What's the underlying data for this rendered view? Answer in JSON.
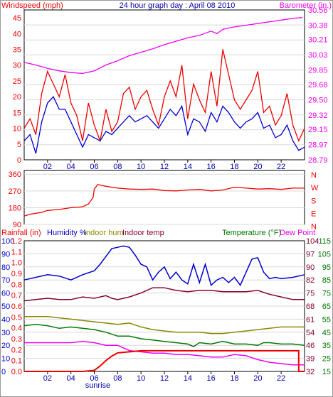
{
  "chart_data": [
    {
      "id": "wind",
      "type": "line",
      "header": {
        "left": "Windspeed (mph)",
        "center": "24 hour graph day : April 08 2010",
        "right": "Barometer (in.)"
      },
      "x_ticks": [
        "02",
        "04",
        "06",
        "08",
        "10",
        "12",
        "14",
        "16",
        "18",
        "20",
        "22"
      ],
      "x_extra_label": "sunrise",
      "y_left_ticks": [
        "0",
        "5",
        "10",
        "15",
        "20",
        "25",
        "30",
        "35",
        "40",
        "45"
      ],
      "y_left_range": [
        0,
        47.5
      ],
      "y_right_ticks": [
        "28.79",
        "28.97",
        "29.15",
        "29.32",
        "29.50",
        "29.68",
        "29.85",
        "30.03",
        "30.21",
        "30.38",
        "30.56"
      ],
      "y_right_range": [
        28.79,
        30.56
      ],
      "series": [
        {
          "key": "gust",
          "color": "#ee0000",
          "x": [
            0,
            0.5,
            1,
            1.5,
            2,
            2.5,
            3,
            3.5,
            4,
            4.5,
            5,
            5.5,
            6,
            6.5,
            7,
            7.5,
            8,
            8.5,
            9,
            9.5,
            10,
            10.5,
            11,
            11.5,
            12,
            12.5,
            13,
            13.5,
            14,
            14.5,
            15,
            15.5,
            16,
            16.5,
            17,
            17.5,
            18,
            18.5,
            19,
            19.5,
            20,
            20.5,
            21,
            21.5,
            22,
            22.5,
            23,
            23.5,
            24
          ],
          "values": [
            10,
            13,
            8,
            21,
            28,
            24,
            20,
            27,
            18,
            14,
            6,
            18,
            11,
            6,
            16,
            9,
            12,
            21,
            23,
            16,
            20,
            22,
            16,
            11,
            20,
            25,
            20,
            30,
            13,
            24,
            19,
            15,
            28,
            17,
            35,
            27,
            19,
            16,
            19,
            22,
            28,
            15,
            17,
            11,
            14,
            21,
            11,
            6,
            10
          ]
        },
        {
          "key": "avg",
          "color": "#0000cc",
          "x": [
            0,
            0.5,
            1,
            1.5,
            2,
            2.5,
            3,
            3.5,
            4,
            4.5,
            5,
            5.5,
            6,
            6.5,
            7,
            7.5,
            8,
            8.5,
            9,
            9.5,
            10,
            10.5,
            11,
            11.5,
            12,
            12.5,
            13,
            13.5,
            14,
            14.5,
            15,
            15.5,
            16,
            16.5,
            17,
            17.5,
            18,
            18.5,
            19,
            19.5,
            20,
            20.5,
            21,
            21.5,
            22,
            22.5,
            23,
            23.5,
            24
          ],
          "values": [
            6,
            8,
            2,
            12,
            18,
            20,
            16,
            16,
            12,
            8,
            4,
            8,
            7,
            6,
            9,
            8,
            10,
            12,
            14,
            12,
            13,
            14,
            12,
            10,
            13,
            16,
            14,
            17,
            8,
            13,
            12,
            9,
            15,
            12,
            17,
            15,
            12,
            10,
            12,
            13,
            15,
            10,
            11,
            7,
            8,
            11,
            6,
            3,
            4
          ]
        },
        {
          "key": "barometer",
          "color": "#ee00ee",
          "axis": "right",
          "x": [
            0,
            1,
            2,
            3,
            4,
            5,
            6,
            7,
            8,
            9,
            10,
            11,
            12,
            13,
            14,
            15,
            16,
            16.5,
            17,
            18,
            19,
            20,
            21,
            22,
            23,
            23.8
          ],
          "values": [
            29.94,
            29.91,
            29.87,
            29.84,
            29.82,
            29.81,
            29.84,
            29.91,
            29.96,
            30.02,
            30.06,
            30.1,
            30.15,
            30.19,
            30.23,
            30.26,
            30.31,
            30.28,
            30.33,
            30.36,
            30.38,
            30.4,
            30.42,
            30.44,
            30.46,
            30.47
          ]
        }
      ]
    },
    {
      "id": "direction",
      "type": "line",
      "y_left_ticks": [
        "360",
        "270",
        "180",
        "90"
      ],
      "y_left_range": [
        90,
        380
      ],
      "y_right_labels": [
        "N",
        "W",
        "S",
        "E",
        "N"
      ],
      "series": [
        {
          "key": "direction",
          "color": "#ee0000",
          "x": [
            0,
            0.5,
            1,
            1.5,
            2,
            2.5,
            3,
            3.5,
            4,
            4.5,
            5,
            5.5,
            5.9,
            6,
            6.3,
            6.6,
            7,
            8,
            9,
            10,
            11,
            12,
            13,
            14,
            15,
            16,
            17,
            18,
            19,
            20,
            21,
            22,
            23,
            24
          ],
          "values": [
            135,
            145,
            150,
            155,
            165,
            168,
            170,
            175,
            180,
            182,
            185,
            200,
            235,
            280,
            305,
            300,
            295,
            285,
            280,
            278,
            280,
            272,
            270,
            275,
            278,
            270,
            275,
            290,
            285,
            280,
            282,
            278,
            285,
            285
          ]
        }
      ]
    },
    {
      "id": "climate",
      "type": "line",
      "header": {
        "rain": "Rainfall (in)",
        "humidity": "Humidity %",
        "indoor_hum": "Indoor hum",
        "indoor_temp": "Indoor temp",
        "temperature": "Temperature (°F)",
        "dew_point": "Dew Point"
      },
      "colors": {
        "rain": "#ee0000",
        "humidity": "#0000cc",
        "indoor_hum": "#888800",
        "indoor_temp": "#880033",
        "temperature": "#007700",
        "dew_point": "#ee00ee"
      },
      "x_ticks": [
        "02",
        "04",
        "06",
        "08",
        "10",
        "12",
        "14",
        "16",
        "18",
        "20",
        "22"
      ],
      "x_extra_label": "sunrise",
      "y_humidity_ticks": [
        "0",
        "10",
        "20",
        "30",
        "40",
        "50",
        "60",
        "70",
        "80",
        "90",
        "100"
      ],
      "y_rain_ticks": [
        "0.0",
        "0.1",
        "0.2",
        "0.3",
        "0.4",
        "0.5",
        "0.6",
        "0.7",
        "0.8",
        "0.9",
        "1.0",
        "1.1",
        "1.2"
      ],
      "y_right_outer_ticks": [
        "115",
        "105",
        "95",
        "85",
        "75",
        "65",
        "55",
        "45",
        "35",
        "25",
        "15"
      ],
      "y_right_inner_ticks": [
        "104",
        "97",
        "90",
        "82",
        "75",
        "68",
        "61",
        "54",
        "46",
        "39",
        "32"
      ],
      "rain_range": [
        0,
        1.2
      ],
      "humidity_range": [
        0,
        100
      ],
      "temp_range": [
        15,
        115
      ],
      "series": [
        {
          "key": "humidity",
          "color": "#0000cc",
          "axis": "humidity",
          "x": [
            0,
            1,
            2,
            3,
            4,
            5,
            6,
            6.5,
            7,
            7.5,
            8,
            8.5,
            9,
            9.5,
            10,
            10.5,
            11,
            11.5,
            12,
            12.5,
            13,
            13.5,
            14,
            14.5,
            15,
            15.5,
            16,
            16.5,
            17,
            17.5,
            18,
            18.5,
            19,
            19.5,
            20,
            20.5,
            21,
            21.5,
            22,
            23,
            24
          ],
          "values": [
            70,
            72,
            74,
            73,
            70,
            74,
            77,
            82,
            88,
            94,
            95,
            96,
            95,
            89,
            82,
            80,
            70,
            76,
            80,
            71,
            76,
            70,
            67,
            82,
            68,
            82,
            66,
            70,
            72,
            68,
            72,
            66,
            76,
            86,
            87,
            76,
            71,
            72,
            71,
            72,
            74
          ]
        },
        {
          "key": "indoor_temp",
          "color": "#880033",
          "axis": "temp",
          "x": [
            0,
            1,
            2,
            3,
            4,
            5,
            6,
            7,
            7.5,
            8,
            9,
            10,
            11,
            12,
            13,
            14,
            15,
            16,
            17,
            18,
            19,
            20,
            21,
            22,
            23,
            24
          ],
          "values": [
            69,
            70,
            71,
            70,
            70,
            72,
            71,
            73,
            71,
            70,
            72,
            75,
            79,
            79,
            77,
            76,
            77,
            77,
            76,
            76,
            76,
            77,
            74,
            72,
            70,
            70
          ]
        },
        {
          "key": "indoor_hum",
          "color": "#888800",
          "axis": "humidity",
          "x": [
            0,
            1,
            2,
            3,
            4,
            5,
            6,
            7,
            8,
            9,
            10,
            11,
            12,
            13,
            14,
            15,
            16,
            17,
            18,
            19,
            20,
            21,
            22,
            23,
            24
          ],
          "values": [
            42,
            42,
            42,
            41,
            40,
            39,
            38,
            37,
            36,
            37,
            34,
            32,
            31,
            30,
            30,
            30,
            29,
            29,
            30,
            31,
            32,
            33,
            34,
            34,
            34
          ]
        },
        {
          "key": "temperature",
          "color": "#007700",
          "axis": "temp",
          "x": [
            0,
            1,
            2,
            3,
            4,
            5,
            6,
            7,
            8,
            9,
            10,
            11,
            12,
            13,
            14,
            14.5,
            15,
            16,
            17,
            18,
            19,
            20,
            20.5,
            21,
            22,
            23,
            24
          ],
          "values": [
            50,
            51,
            50,
            48,
            49,
            48,
            47,
            45,
            42,
            42,
            40,
            39,
            38,
            37,
            36,
            34,
            37,
            36,
            38,
            36,
            36,
            35,
            37,
            37,
            36,
            36,
            35
          ]
        },
        {
          "key": "dew_point",
          "color": "#ee00ee",
          "axis": "temp",
          "x": [
            0,
            1,
            2,
            3,
            4,
            5,
            6,
            7,
            8,
            9,
            10,
            11,
            12,
            13,
            14,
            15,
            16,
            17,
            18,
            19,
            20,
            21,
            22,
            23,
            24
          ],
          "values": [
            37,
            37,
            37,
            37,
            37,
            38,
            37,
            35,
            35,
            31,
            30,
            29,
            29,
            28,
            28,
            27,
            26,
            26,
            28,
            27,
            24,
            22,
            21,
            20,
            20
          ]
        },
        {
          "key": "rain",
          "color": "#ee0000",
          "axis": "rain",
          "x": [
            0,
            5,
            6,
            6.5,
            7,
            7.5,
            8,
            9,
            10,
            12,
            14,
            16,
            18,
            20,
            22,
            23.5,
            23.5,
            24
          ],
          "values": [
            0,
            0,
            0.01,
            0.05,
            0.1,
            0.14,
            0.17,
            0.18,
            0.19,
            0.19,
            0.19,
            0.19,
            0.19,
            0.19,
            0.19,
            0.19,
            0,
            0
          ]
        }
      ]
    }
  ]
}
